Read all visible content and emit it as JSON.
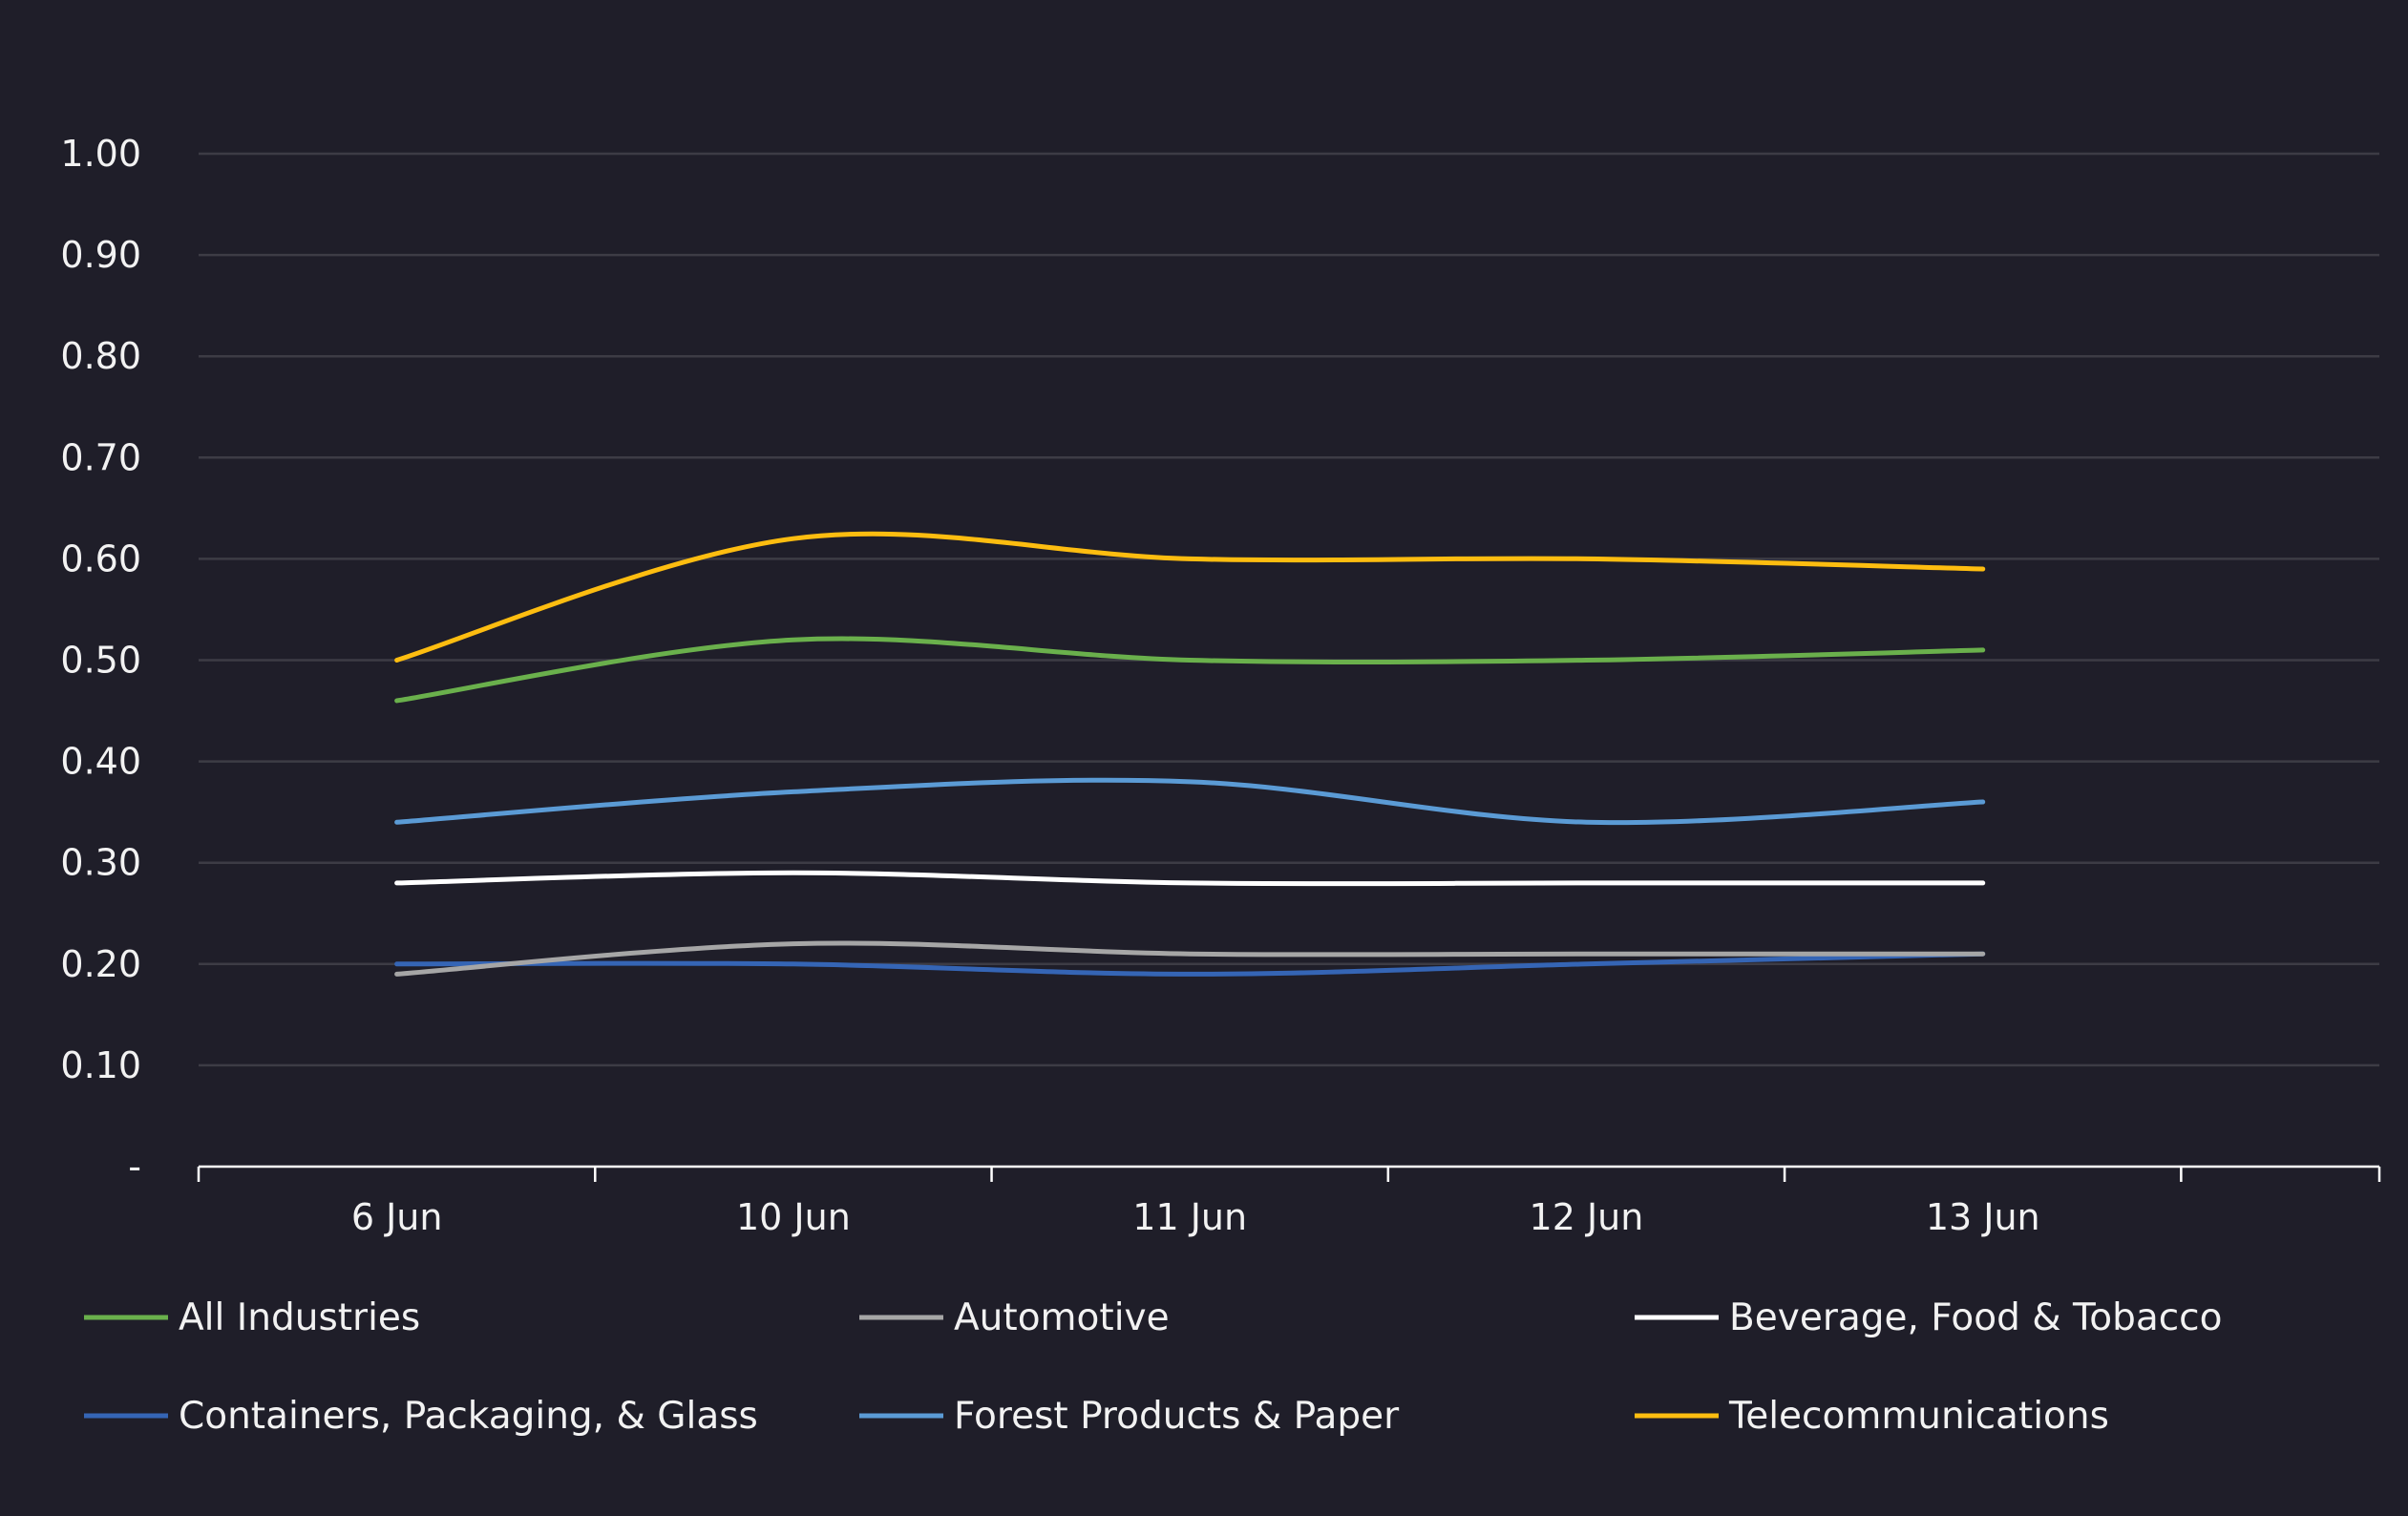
{
  "chart_data": {
    "type": "line",
    "title": "",
    "xlabel": "",
    "ylabel": "",
    "categories": [
      "6 Jun",
      "10 Jun",
      "11 Jun",
      "12 Jun",
      "13 Jun"
    ],
    "ylim": [
      0,
      1.0
    ],
    "y_ticks": [
      {
        "value": 0,
        "label": "-"
      },
      {
        "value": 0.1,
        "label": "0.10"
      },
      {
        "value": 0.2,
        "label": "0.20"
      },
      {
        "value": 0.3,
        "label": "0.30"
      },
      {
        "value": 0.4,
        "label": "0.40"
      },
      {
        "value": 0.5,
        "label": "0.50"
      },
      {
        "value": 0.6,
        "label": "0.60"
      },
      {
        "value": 0.7,
        "label": "0.70"
      },
      {
        "value": 0.8,
        "label": "0.80"
      },
      {
        "value": 0.9,
        "label": "0.90"
      },
      {
        "value": 1.0,
        "label": "1.00"
      }
    ],
    "grid": true,
    "legend_position": "bottom",
    "background_color": "#1f1e29",
    "series": [
      {
        "name": "All Industries",
        "color": "#6ab04c",
        "values": [
          0.46,
          0.52,
          0.5,
          0.5,
          0.51
        ]
      },
      {
        "name": "Automotive",
        "color": "#a6a6a6",
        "values": [
          0.19,
          0.22,
          0.21,
          0.21,
          0.21
        ]
      },
      {
        "name": "Beverage, Food & Tobacco",
        "color": "#ffffff",
        "values": [
          0.28,
          0.29,
          0.28,
          0.28,
          0.28
        ]
      },
      {
        "name": "Containers, Packaging, & Glass",
        "color": "#3565b5",
        "values": [
          0.2,
          0.2,
          0.19,
          0.2,
          0.21
        ]
      },
      {
        "name": "Forest Products & Paper",
        "color": "#5b9bd5",
        "values": [
          0.34,
          0.37,
          0.38,
          0.34,
          0.36
        ]
      },
      {
        "name": "Telecommunications",
        "color": "#fdbd10",
        "values": [
          0.5,
          0.62,
          0.6,
          0.6,
          0.59
        ]
      }
    ]
  }
}
